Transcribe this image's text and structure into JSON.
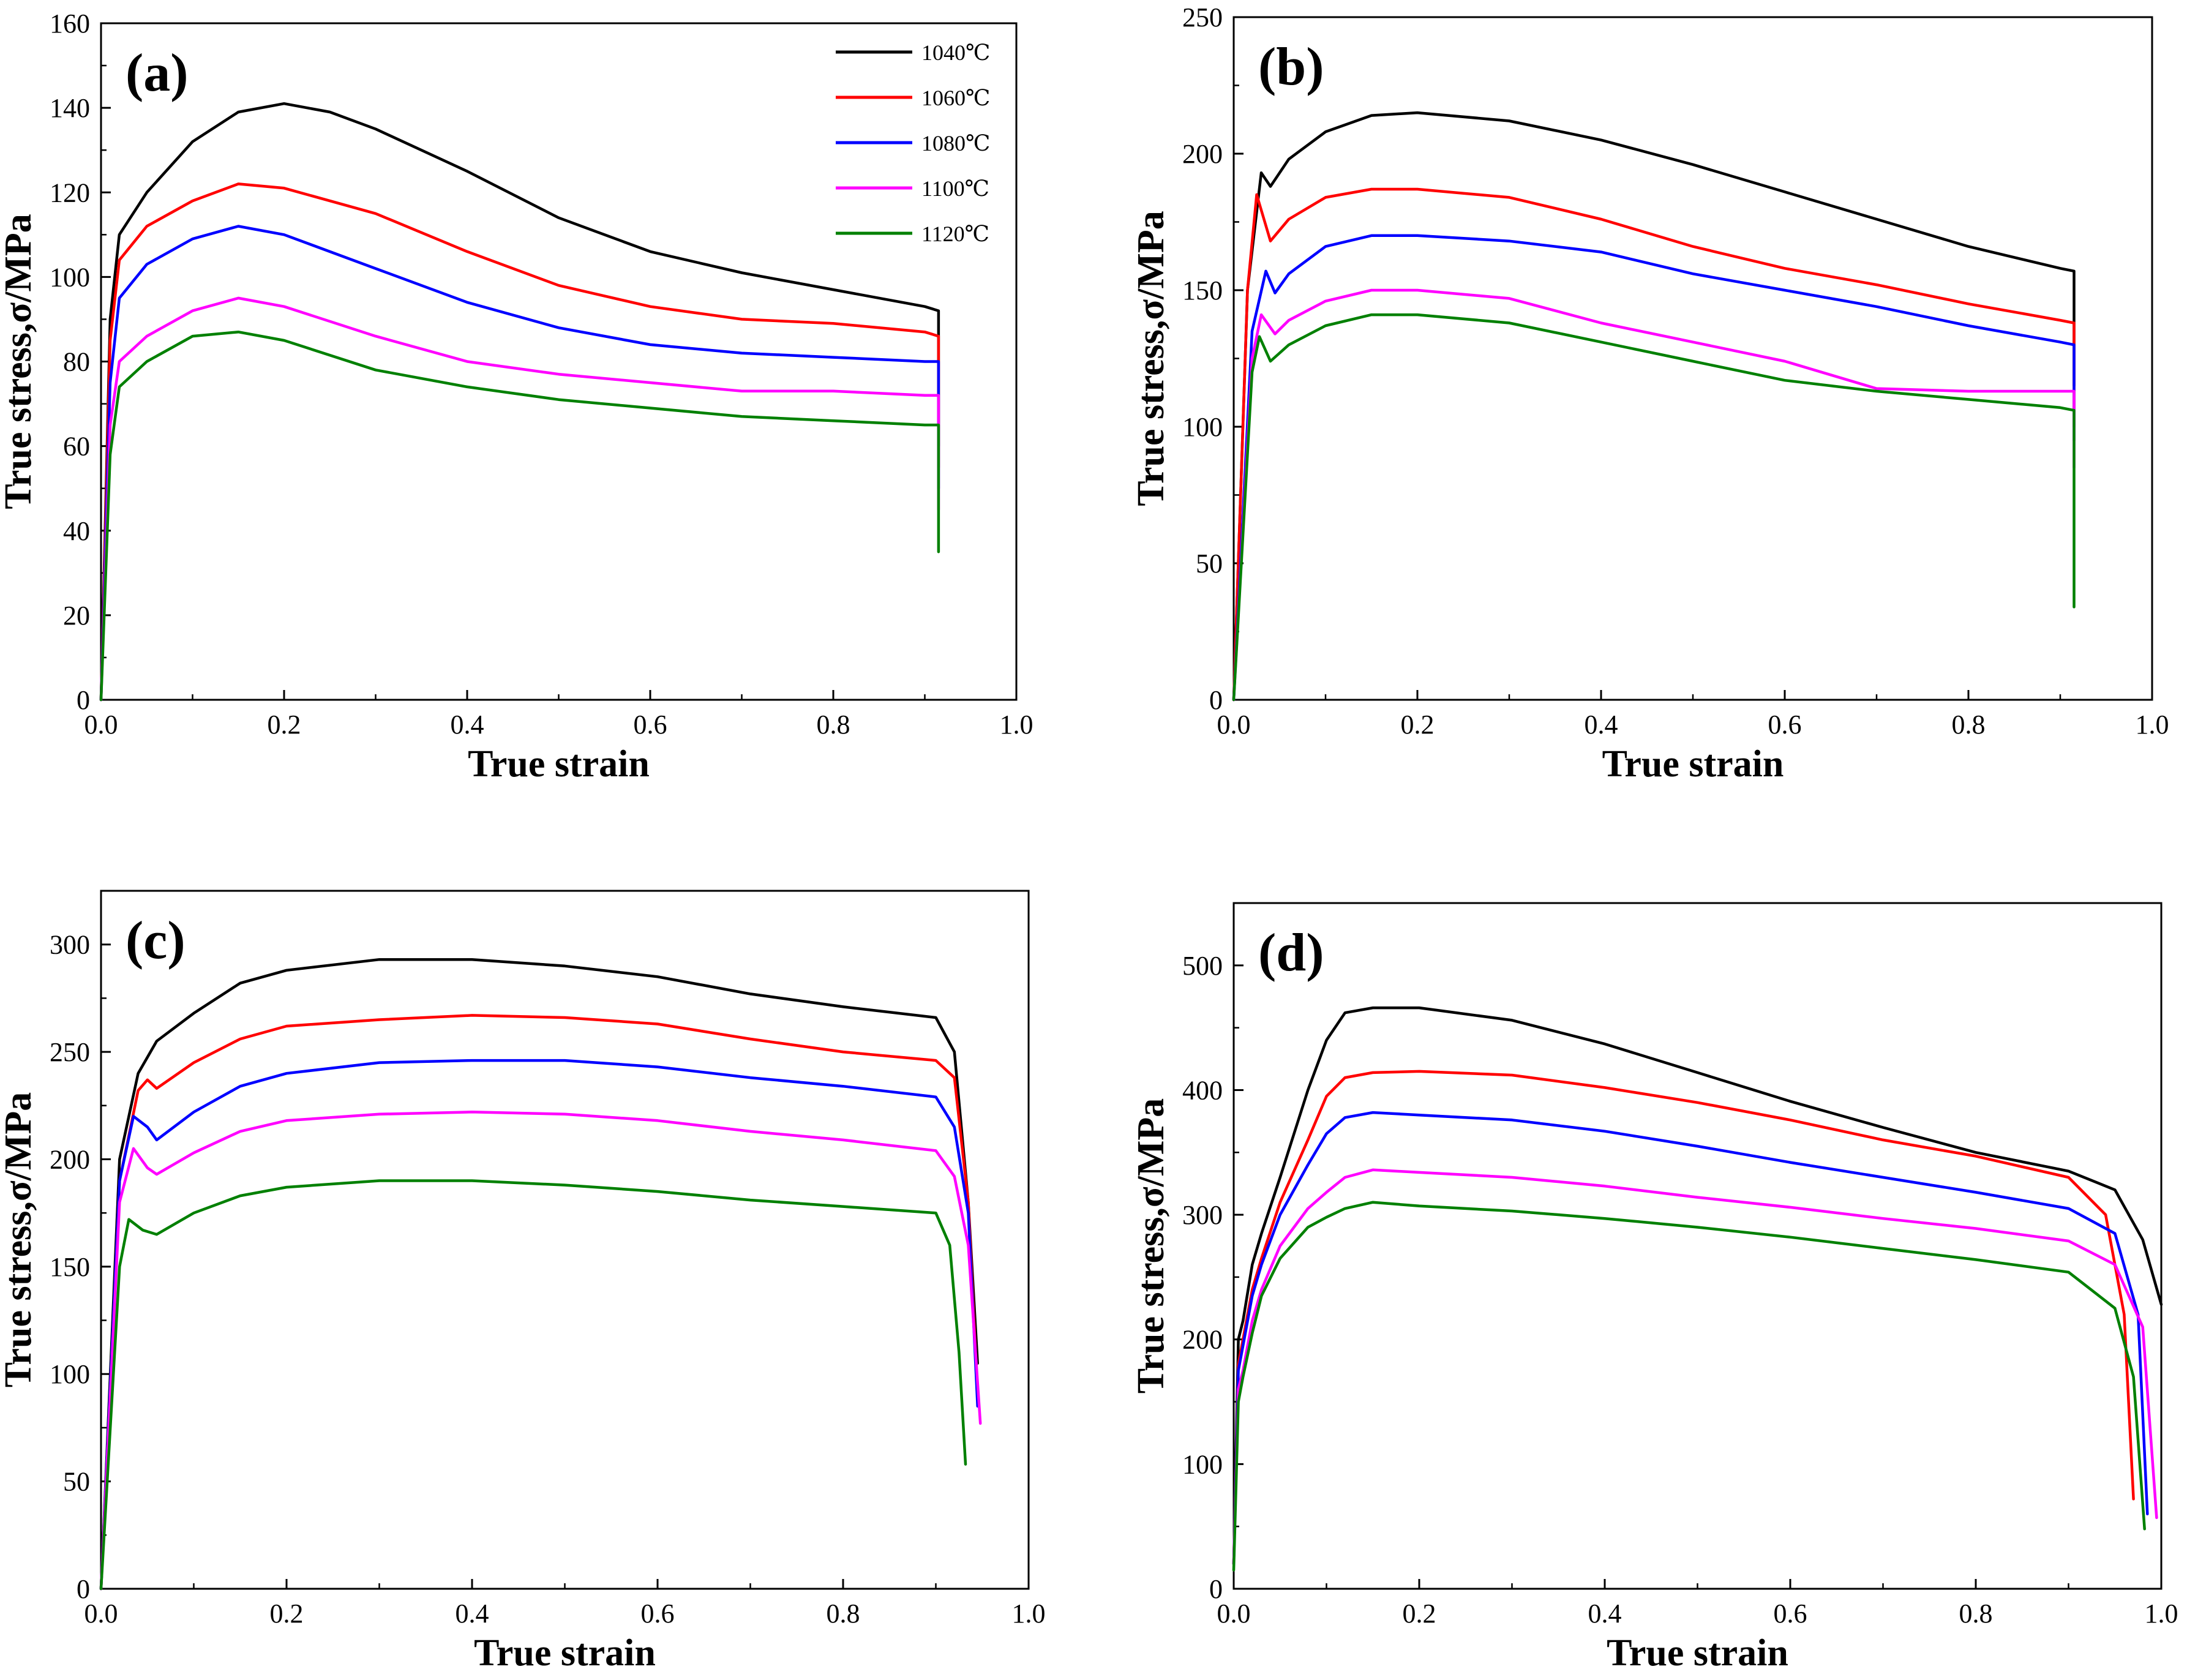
{
  "series_colors": {
    "1040℃": "#000000",
    "1060℃": "#ff0000",
    "1080℃": "#0000ff",
    "1100℃": "#ff00ff",
    "1120℃": "#008000"
  },
  "chart_data": [
    {
      "panel": "(a)",
      "type": "line",
      "xlabel": "True strain",
      "ylabel": "True stress,σ/MPa",
      "xlim": [
        0.0,
        1.0
      ],
      "ylim": [
        0,
        160
      ],
      "xticks": [
        "0.0",
        "0.2",
        "0.4",
        "0.6",
        "0.8",
        "1.0"
      ],
      "yticks": [
        "0",
        "20",
        "40",
        "60",
        "80",
        "100",
        "120",
        "140",
        "160"
      ],
      "legend": {
        "position": "top-right",
        "entries": [
          "1040℃",
          "1060℃",
          "1080℃",
          "1100℃",
          "1120℃"
        ]
      },
      "series": [
        {
          "name": "1040℃",
          "x": [
            0.0,
            0.01,
            0.02,
            0.05,
            0.1,
            0.15,
            0.2,
            0.25,
            0.3,
            0.4,
            0.5,
            0.6,
            0.7,
            0.8,
            0.9,
            0.915,
            0.915
          ],
          "y": [
            0,
            90,
            110,
            120,
            132,
            139,
            141,
            139,
            135,
            125,
            114,
            106,
            101,
            97,
            93,
            92,
            60
          ]
        },
        {
          "name": "1060℃",
          "x": [
            0.0,
            0.01,
            0.02,
            0.05,
            0.1,
            0.15,
            0.2,
            0.3,
            0.4,
            0.5,
            0.6,
            0.7,
            0.8,
            0.9,
            0.915,
            0.915
          ],
          "y": [
            0,
            85,
            104,
            112,
            118,
            122,
            121,
            115,
            106,
            98,
            93,
            90,
            89,
            87,
            86,
            55
          ]
        },
        {
          "name": "1080℃",
          "x": [
            0.0,
            0.01,
            0.02,
            0.05,
            0.1,
            0.15,
            0.2,
            0.3,
            0.4,
            0.5,
            0.6,
            0.7,
            0.8,
            0.9,
            0.915,
            0.915
          ],
          "y": [
            0,
            75,
            95,
            103,
            109,
            112,
            110,
            102,
            94,
            88,
            84,
            82,
            81,
            80,
            80,
            50
          ]
        },
        {
          "name": "1100℃",
          "x": [
            0.0,
            0.01,
            0.02,
            0.05,
            0.1,
            0.15,
            0.2,
            0.3,
            0.4,
            0.5,
            0.6,
            0.7,
            0.8,
            0.9,
            0.915,
            0.915
          ],
          "y": [
            0,
            65,
            80,
            86,
            92,
            95,
            93,
            86,
            80,
            77,
            75,
            73,
            73,
            72,
            72,
            45
          ]
        },
        {
          "name": "1120℃",
          "x": [
            0.0,
            0.01,
            0.02,
            0.05,
            0.1,
            0.15,
            0.2,
            0.3,
            0.4,
            0.5,
            0.6,
            0.7,
            0.8,
            0.9,
            0.915,
            0.915
          ],
          "y": [
            0,
            58,
            74,
            80,
            86,
            87,
            85,
            78,
            74,
            71,
            69,
            67,
            66,
            65,
            65,
            35
          ]
        }
      ]
    },
    {
      "panel": "(b)",
      "type": "line",
      "xlabel": "True strain",
      "ylabel": "True stress,σ/MPa",
      "xlim": [
        0.0,
        1.0
      ],
      "ylim": [
        0,
        250
      ],
      "xticks": [
        "0.0",
        "0.2",
        "0.4",
        "0.6",
        "0.8",
        "1.0"
      ],
      "yticks": [
        "0",
        "50",
        "100",
        "150",
        "200",
        "250"
      ],
      "series": [
        {
          "name": "1040℃",
          "x": [
            0.0,
            0.015,
            0.03,
            0.04,
            0.06,
            0.1,
            0.15,
            0.2,
            0.3,
            0.4,
            0.5,
            0.6,
            0.7,
            0.8,
            0.9,
            0.915,
            0.915
          ],
          "y": [
            0,
            150,
            193,
            188,
            198,
            208,
            214,
            215,
            212,
            205,
            196,
            186,
            176,
            166,
            158,
            157,
            115
          ]
        },
        {
          "name": "1060℃",
          "x": [
            0.0,
            0.015,
            0.025,
            0.04,
            0.06,
            0.1,
            0.15,
            0.2,
            0.3,
            0.4,
            0.5,
            0.6,
            0.7,
            0.8,
            0.9,
            0.915,
            0.915
          ],
          "y": [
            0,
            150,
            185,
            168,
            176,
            184,
            187,
            187,
            184,
            176,
            166,
            158,
            152,
            145,
            139,
            138,
            100
          ]
        },
        {
          "name": "1080℃",
          "x": [
            0.0,
            0.02,
            0.035,
            0.045,
            0.06,
            0.1,
            0.15,
            0.2,
            0.3,
            0.4,
            0.5,
            0.6,
            0.7,
            0.8,
            0.9,
            0.915,
            0.915
          ],
          "y": [
            0,
            135,
            157,
            149,
            156,
            166,
            170,
            170,
            168,
            164,
            156,
            150,
            144,
            137,
            131,
            130,
            95
          ]
        },
        {
          "name": "1100℃",
          "x": [
            0.0,
            0.02,
            0.03,
            0.045,
            0.06,
            0.1,
            0.15,
            0.2,
            0.3,
            0.4,
            0.5,
            0.6,
            0.7,
            0.8,
            0.9,
            0.915,
            0.915
          ],
          "y": [
            0,
            125,
            141,
            134,
            139,
            146,
            150,
            150,
            147,
            138,
            131,
            124,
            114,
            113,
            113,
            113,
            85
          ]
        },
        {
          "name": "1120℃",
          "x": [
            0.0,
            0.02,
            0.028,
            0.04,
            0.06,
            0.1,
            0.15,
            0.2,
            0.3,
            0.4,
            0.5,
            0.6,
            0.7,
            0.8,
            0.9,
            0.915,
            0.915
          ],
          "y": [
            0,
            120,
            133,
            124,
            130,
            137,
            141,
            141,
            138,
            131,
            124,
            117,
            113,
            110,
            107,
            106,
            34
          ]
        }
      ]
    },
    {
      "panel": "(c)",
      "type": "line",
      "xlabel": "True strain",
      "ylabel": "True stress,σ/MPa",
      "xlim": [
        0.0,
        1.0
      ],
      "ylim": [
        0,
        325
      ],
      "xticks": [
        "0.0",
        "0.2",
        "0.4",
        "0.6",
        "0.8",
        "1.0"
      ],
      "yticks": [
        "0",
        "50",
        "100",
        "150",
        "200",
        "250",
        "300"
      ],
      "series": [
        {
          "name": "1040℃",
          "x": [
            0.0,
            0.02,
            0.04,
            0.06,
            0.1,
            0.15,
            0.2,
            0.3,
            0.4,
            0.5,
            0.6,
            0.7,
            0.8,
            0.9,
            0.92,
            0.935,
            0.945
          ],
          "y": [
            0,
            200,
            240,
            255,
            268,
            282,
            288,
            293,
            293,
            290,
            285,
            277,
            271,
            266,
            250,
            180,
            105
          ]
        },
        {
          "name": "1060℃",
          "x": [
            0.0,
            0.02,
            0.04,
            0.05,
            0.06,
            0.1,
            0.15,
            0.2,
            0.3,
            0.4,
            0.5,
            0.6,
            0.7,
            0.8,
            0.9,
            0.92,
            0.935,
            0.945
          ],
          "y": [
            0,
            190,
            232,
            237,
            233,
            245,
            256,
            262,
            265,
            267,
            266,
            263,
            256,
            250,
            246,
            238,
            180,
            90
          ]
        },
        {
          "name": "1080℃",
          "x": [
            0.0,
            0.02,
            0.035,
            0.05,
            0.06,
            0.1,
            0.15,
            0.2,
            0.3,
            0.4,
            0.5,
            0.6,
            0.7,
            0.8,
            0.9,
            0.92,
            0.935,
            0.945
          ],
          "y": [
            0,
            190,
            220,
            215,
            209,
            222,
            234,
            240,
            245,
            246,
            246,
            243,
            238,
            234,
            229,
            215,
            175,
            85
          ]
        },
        {
          "name": "1100℃",
          "x": [
            0.0,
            0.02,
            0.035,
            0.05,
            0.06,
            0.1,
            0.15,
            0.2,
            0.3,
            0.4,
            0.5,
            0.6,
            0.7,
            0.8,
            0.9,
            0.92,
            0.935,
            0.948
          ],
          "y": [
            0,
            180,
            205,
            196,
            193,
            203,
            213,
            218,
            221,
            222,
            221,
            218,
            213,
            209,
            204,
            192,
            160,
            77
          ]
        },
        {
          "name": "1120℃",
          "x": [
            0.0,
            0.02,
            0.03,
            0.045,
            0.06,
            0.1,
            0.15,
            0.2,
            0.3,
            0.4,
            0.5,
            0.6,
            0.7,
            0.8,
            0.9,
            0.915,
            0.925,
            0.932
          ],
          "y": [
            0,
            150,
            172,
            167,
            165,
            175,
            183,
            187,
            190,
            190,
            188,
            185,
            181,
            178,
            175,
            160,
            110,
            58
          ]
        }
      ]
    },
    {
      "panel": "(d)",
      "type": "line",
      "xlabel": "True strain",
      "ylabel": "True stress,σ/MPa",
      "xlim": [
        0.0,
        1.0
      ],
      "ylim": [
        0,
        550
      ],
      "xticks": [
        "0.0",
        "0.2",
        "0.4",
        "0.6",
        "0.8",
        "1.0"
      ],
      "yticks": [
        "0",
        "100",
        "200",
        "300",
        "400",
        "500"
      ],
      "series": [
        {
          "name": "1040℃",
          "x": [
            0.0,
            0.005,
            0.01,
            0.02,
            0.03,
            0.05,
            0.08,
            0.1,
            0.12,
            0.15,
            0.2,
            0.3,
            0.4,
            0.5,
            0.6,
            0.7,
            0.8,
            0.9,
            0.95,
            0.98,
            1.0
          ],
          "y": [
            20,
            200,
            215,
            260,
            285,
            330,
            400,
            440,
            462,
            466,
            466,
            456,
            437,
            414,
            391,
            370,
            350,
            335,
            320,
            280,
            228
          ]
        },
        {
          "name": "1060℃",
          "x": [
            0.0,
            0.005,
            0.01,
            0.02,
            0.03,
            0.05,
            0.08,
            0.1,
            0.12,
            0.15,
            0.2,
            0.3,
            0.4,
            0.5,
            0.6,
            0.7,
            0.8,
            0.9,
            0.94,
            0.96,
            0.97
          ],
          "y": [
            20,
            180,
            200,
            240,
            265,
            310,
            360,
            395,
            410,
            414,
            415,
            412,
            402,
            390,
            376,
            360,
            347,
            330,
            300,
            220,
            72
          ]
        },
        {
          "name": "1080℃",
          "x": [
            0.0,
            0.005,
            0.01,
            0.02,
            0.03,
            0.05,
            0.08,
            0.1,
            0.12,
            0.15,
            0.2,
            0.3,
            0.4,
            0.5,
            0.6,
            0.7,
            0.8,
            0.9,
            0.95,
            0.975,
            0.985
          ],
          "y": [
            20,
            175,
            195,
            235,
            260,
            300,
            340,
            365,
            378,
            382,
            380,
            376,
            367,
            355,
            342,
            330,
            318,
            305,
            285,
            220,
            60
          ]
        },
        {
          "name": "1100℃",
          "x": [
            0.0,
            0.005,
            0.01,
            0.02,
            0.03,
            0.05,
            0.08,
            0.1,
            0.12,
            0.15,
            0.2,
            0.3,
            0.4,
            0.5,
            0.6,
            0.7,
            0.8,
            0.9,
            0.95,
            0.98,
            0.995
          ],
          "y": [
            20,
            160,
            175,
            215,
            240,
            275,
            305,
            318,
            330,
            336,
            334,
            330,
            323,
            314,
            306,
            297,
            289,
            279,
            260,
            210,
            57
          ]
        },
        {
          "name": "1120℃",
          "x": [
            0.0,
            0.005,
            0.01,
            0.02,
            0.03,
            0.05,
            0.08,
            0.1,
            0.12,
            0.15,
            0.2,
            0.3,
            0.4,
            0.5,
            0.6,
            0.7,
            0.8,
            0.9,
            0.95,
            0.97,
            0.982
          ],
          "y": [
            15,
            150,
            170,
            205,
            235,
            265,
            290,
            298,
            305,
            310,
            307,
            303,
            297,
            290,
            282,
            273,
            264,
            254,
            225,
            170,
            48
          ]
        }
      ]
    }
  ]
}
